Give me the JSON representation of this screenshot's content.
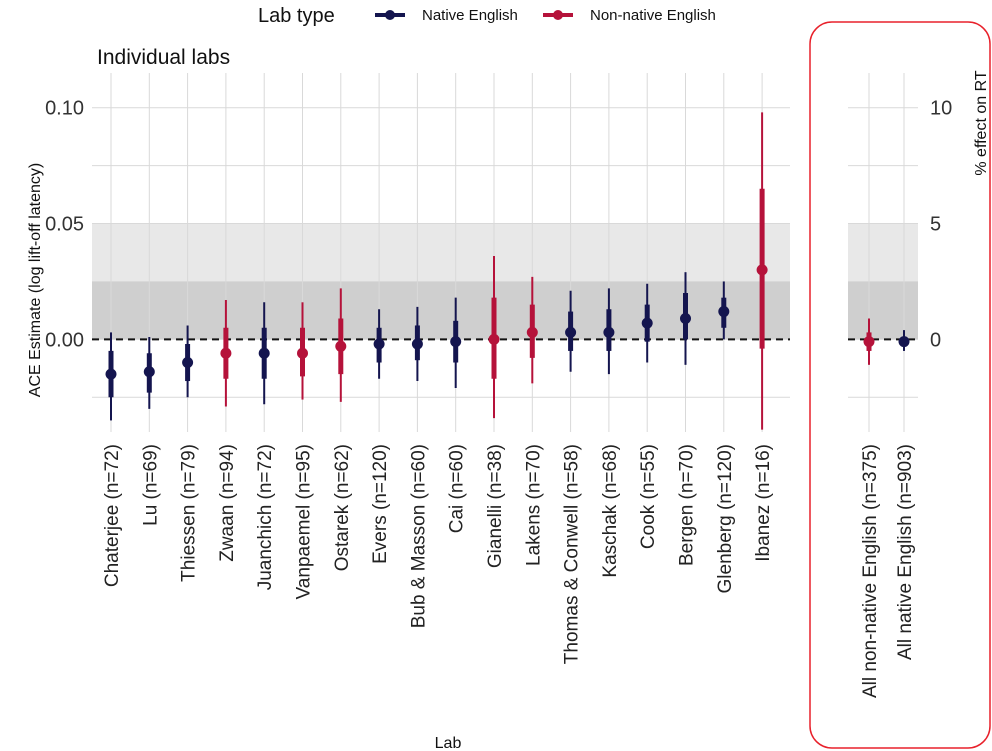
{
  "chart_data": {
    "type": "forest-plot",
    "legend": {
      "title": "Lab type",
      "entries": [
        {
          "key": "native",
          "label": "Native English",
          "color": "#14154f"
        },
        {
          "key": "nonnative",
          "label": "Non-native English",
          "color": "#b5123a"
        }
      ]
    },
    "ylabel": "ACE Estimate (log lift-off latency)",
    "ylabel_right": "% effect on RT",
    "xlabel": "Lab",
    "ylim": [
      -0.04,
      0.115
    ],
    "yticks": [
      0.0,
      0.05,
      0.1
    ],
    "ytick_labels": [
      "0.00",
      "0.05",
      "0.10"
    ],
    "yticks_right": [
      0,
      5,
      10
    ],
    "ytick_right_labels": [
      "0",
      "5",
      "10"
    ],
    "shaded_bands": [
      {
        "from": 0.0,
        "to": 0.025,
        "color": "#cfcfcf"
      },
      {
        "from": 0.025,
        "to": 0.05,
        "color": "#e8e8e8"
      }
    ],
    "reference_line": 0,
    "panels": [
      {
        "title": "Individual labs",
        "points": [
          {
            "label": "Chaterjee (n=72)",
            "group": "native",
            "est": -0.015,
            "inner": [
              -0.025,
              -0.005
            ],
            "outer": [
              -0.035,
              0.003
            ]
          },
          {
            "label": "Lu (n=69)",
            "group": "native",
            "est": -0.014,
            "inner": [
              -0.023,
              -0.006
            ],
            "outer": [
              -0.03,
              0.001
            ]
          },
          {
            "label": "Thiessen (n=79)",
            "group": "native",
            "est": -0.01,
            "inner": [
              -0.018,
              -0.002
            ],
            "outer": [
              -0.025,
              0.006
            ]
          },
          {
            "label": "Zwaan (n=94)",
            "group": "nonnative",
            "est": -0.006,
            "inner": [
              -0.017,
              0.005
            ],
            "outer": [
              -0.029,
              0.017
            ]
          },
          {
            "label": "Juanchich (n=72)",
            "group": "native",
            "est": -0.006,
            "inner": [
              -0.017,
              0.005
            ],
            "outer": [
              -0.028,
              0.016
            ]
          },
          {
            "label": "Vanpaemel (n=95)",
            "group": "nonnative",
            "est": -0.006,
            "inner": [
              -0.016,
              0.005
            ],
            "outer": [
              -0.026,
              0.016
            ]
          },
          {
            "label": "Ostarek (n=62)",
            "group": "nonnative",
            "est": -0.003,
            "inner": [
              -0.015,
              0.009
            ],
            "outer": [
              -0.027,
              0.022
            ]
          },
          {
            "label": "Evers (n=120)",
            "group": "native",
            "est": -0.002,
            "inner": [
              -0.01,
              0.005
            ],
            "outer": [
              -0.017,
              0.013
            ]
          },
          {
            "label": "Bub & Masson (n=60)",
            "group": "native",
            "est": -0.002,
            "inner": [
              -0.009,
              0.006
            ],
            "outer": [
              -0.018,
              0.014
            ]
          },
          {
            "label": "Cai (n=60)",
            "group": "native",
            "est": -0.001,
            "inner": [
              -0.01,
              0.008
            ],
            "outer": [
              -0.021,
              0.018
            ]
          },
          {
            "label": "Gianelli (n=38)",
            "group": "nonnative",
            "est": 0.0,
            "inner": [
              -0.017,
              0.018
            ],
            "outer": [
              -0.034,
              0.036
            ]
          },
          {
            "label": "Lakens (n=70)",
            "group": "nonnative",
            "est": 0.003,
            "inner": [
              -0.008,
              0.015
            ],
            "outer": [
              -0.019,
              0.027
            ]
          },
          {
            "label": "Thomas & Conwell (n=58)",
            "group": "native",
            "est": 0.003,
            "inner": [
              -0.005,
              0.012
            ],
            "outer": [
              -0.014,
              0.021
            ]
          },
          {
            "label": "Kaschak (n=68)",
            "group": "native",
            "est": 0.003,
            "inner": [
              -0.005,
              0.013
            ],
            "outer": [
              -0.015,
              0.022
            ]
          },
          {
            "label": "Cook (n=55)",
            "group": "native",
            "est": 0.007,
            "inner": [
              -0.001,
              0.015
            ],
            "outer": [
              -0.01,
              0.024
            ]
          },
          {
            "label": "Bergen (n=70)",
            "group": "native",
            "est": 0.009,
            "inner": [
              0.0,
              0.02
            ],
            "outer": [
              -0.011,
              0.029
            ]
          },
          {
            "label": "Glenberg (n=120)",
            "group": "native",
            "est": 0.012,
            "inner": [
              0.005,
              0.018
            ],
            "outer": [
              0.0,
              0.025
            ]
          },
          {
            "label": "Ibanez (n=16)",
            "group": "nonnative",
            "est": 0.03,
            "inner": [
              -0.004,
              0.065
            ],
            "outer": [
              -0.039,
              0.098
            ]
          }
        ]
      },
      {
        "title": "",
        "points": [
          {
            "label": "All non-native English (n=375)",
            "group": "nonnative",
            "est": -0.001,
            "inner": [
              -0.005,
              0.003
            ],
            "outer": [
              -0.011,
              0.009
            ]
          },
          {
            "label": "All native English (n=903)",
            "group": "native",
            "est": -0.001,
            "inner": [
              -0.003,
              0.001
            ],
            "outer": [
              -0.005,
              0.004
            ]
          }
        ]
      }
    ]
  }
}
